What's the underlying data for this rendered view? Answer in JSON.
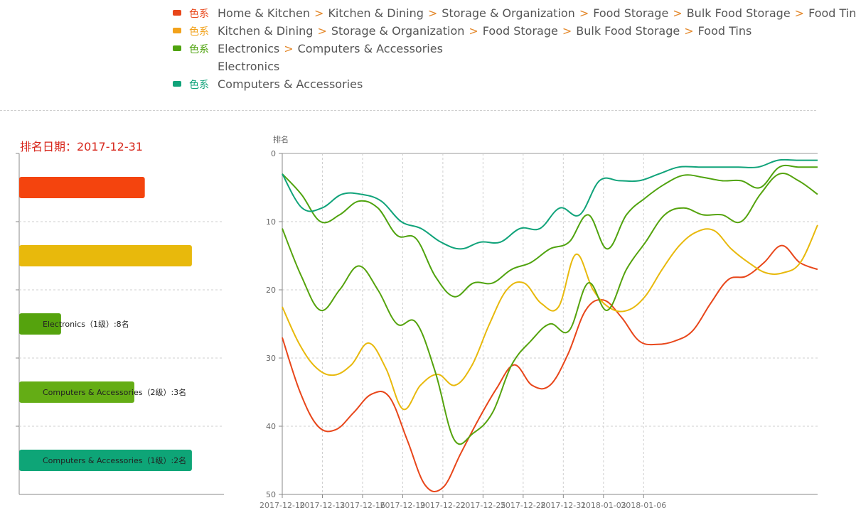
{
  "legend": [
    {
      "color": "#e8461a",
      "tag": "色系",
      "segments": [
        "Home & Kitchen",
        "Kitchen & Dining",
        "Storage & Organization",
        "Food Storage",
        "Bulk Food Storage",
        "Food Tins"
      ]
    },
    {
      "color": "#f2a21b",
      "tag": "色系",
      "segments": [
        "Kitchen & Dining",
        "Storage & Organization",
        "Food Storage",
        "Bulk Food Storage",
        "Food Tins"
      ]
    },
    {
      "color": "#4fa30e",
      "tag": "色系",
      "segments": [
        "Electronics",
        "Computers & Accessories"
      ]
    },
    {
      "color": "",
      "tag": "",
      "segments": [
        "Electronics"
      ]
    },
    {
      "color": "#10a37a",
      "tag": "色系",
      "segments": [
        "Computers & Accessories"
      ]
    }
  ],
  "rank_date": "排名日期：2017-12-31",
  "chart_data": [
    {
      "type": "bar",
      "orientation": "horizontal",
      "bars": [
        {
          "label": "",
          "value": 27,
          "color": "#f4440e"
        },
        {
          "label": "",
          "value": 36,
          "color": "#e8b90c"
        },
        {
          "label": "Electronics（1级）:8名",
          "value": 8,
          "color": "#55a30d"
        },
        {
          "label": "Computers & Accessories（2级）:3名",
          "value": 3,
          "color": "#64ad15"
        },
        {
          "label": "Computers & Accessories（1级）:2名",
          "value": 2,
          "color": "#0ea577"
        }
      ],
      "bar_lengths": [
        24,
        33,
        8,
        22,
        33
      ],
      "xlim": [
        0,
        36
      ]
    },
    {
      "type": "line",
      "ylabel": "排名",
      "ylim": [
        0,
        50
      ],
      "y_inverted": true,
      "yticks": [
        "0",
        "10",
        "20",
        "30",
        "40",
        "50"
      ],
      "xticks": [
        "2017-12-10",
        "2017-12-13",
        "2017-12-16",
        "2017-12-19",
        "2017-12-22",
        "2017-12-25",
        "2017-12-28",
        "2017-12-31",
        "2018-01-03",
        "2018-01-06"
      ],
      "x_start": "2017-12-10",
      "x_days": [
        0,
        1.5,
        3,
        4,
        5,
        6,
        7,
        8,
        9,
        10,
        11,
        12,
        13,
        14,
        15,
        16,
        17,
        18,
        19,
        20,
        21,
        22,
        23,
        24,
        25,
        26,
        27,
        28,
        29,
        30,
        31,
        32,
        33,
        34,
        35,
        36,
        37,
        38,
        39,
        40
      ],
      "series": [
        {
          "name": "Home & Kitchen > Kitchen & Dining > Storage & Organization > Food Storage > Bulk Food Storage > Food Tins",
          "color": "#e8461a",
          "values": [
            27,
            35,
            40,
            40.5,
            38,
            35.3,
            35.7,
            42,
            48.6,
            49,
            44,
            39,
            34.5,
            31,
            34,
            34,
            29.5,
            23,
            21.5,
            24,
            27.5,
            28,
            27.5,
            26,
            22,
            18.5,
            18,
            16,
            13.5,
            16,
            17
          ]
        },
        {
          "name": "Kitchen & Dining > Storage & Organization > Food Storage > Bulk Food Storage > Food Tins",
          "color": "#e8b90c",
          "values": [
            22.5,
            28,
            31.5,
            32.5,
            31,
            27.8,
            31.5,
            37.5,
            34,
            32.4,
            34,
            31,
            25,
            20,
            19,
            22,
            22.5,
            14.8,
            20,
            22.7,
            23,
            21,
            17,
            13.5,
            11.5,
            11.3,
            14,
            16,
            17.5,
            17.5,
            16,
            10.5
          ]
        },
        {
          "name": "Electronics > Computers & Accessories",
          "color": "#4fa30e",
          "values": [
            3,
            6,
            10,
            9,
            7,
            8,
            12,
            12.5,
            18,
            21,
            19,
            19,
            17,
            16,
            14,
            13,
            9,
            14,
            9,
            6.5,
            4.5,
            3.2,
            3.5,
            4,
            4,
            5,
            2,
            2,
            2
          ]
        },
        {
          "name": "Electronics",
          "color": "#55a30d",
          "values": [
            11,
            18,
            23,
            20,
            16.5,
            20,
            25,
            24.8,
            32,
            42,
            41,
            38,
            31,
            27.5,
            25,
            26,
            19,
            23,
            17,
            13,
            9,
            8,
            9,
            9,
            10,
            6,
            3,
            4,
            6
          ]
        },
        {
          "name": "Computers & Accessories",
          "color": "#10a37a",
          "values": [
            3,
            8,
            8,
            6,
            6,
            7,
            10,
            11,
            13,
            14,
            13,
            13,
            11,
            11,
            8,
            9,
            4,
            4,
            4,
            3,
            2,
            2,
            2,
            2,
            2,
            1,
            1,
            1
          ]
        }
      ]
    }
  ]
}
